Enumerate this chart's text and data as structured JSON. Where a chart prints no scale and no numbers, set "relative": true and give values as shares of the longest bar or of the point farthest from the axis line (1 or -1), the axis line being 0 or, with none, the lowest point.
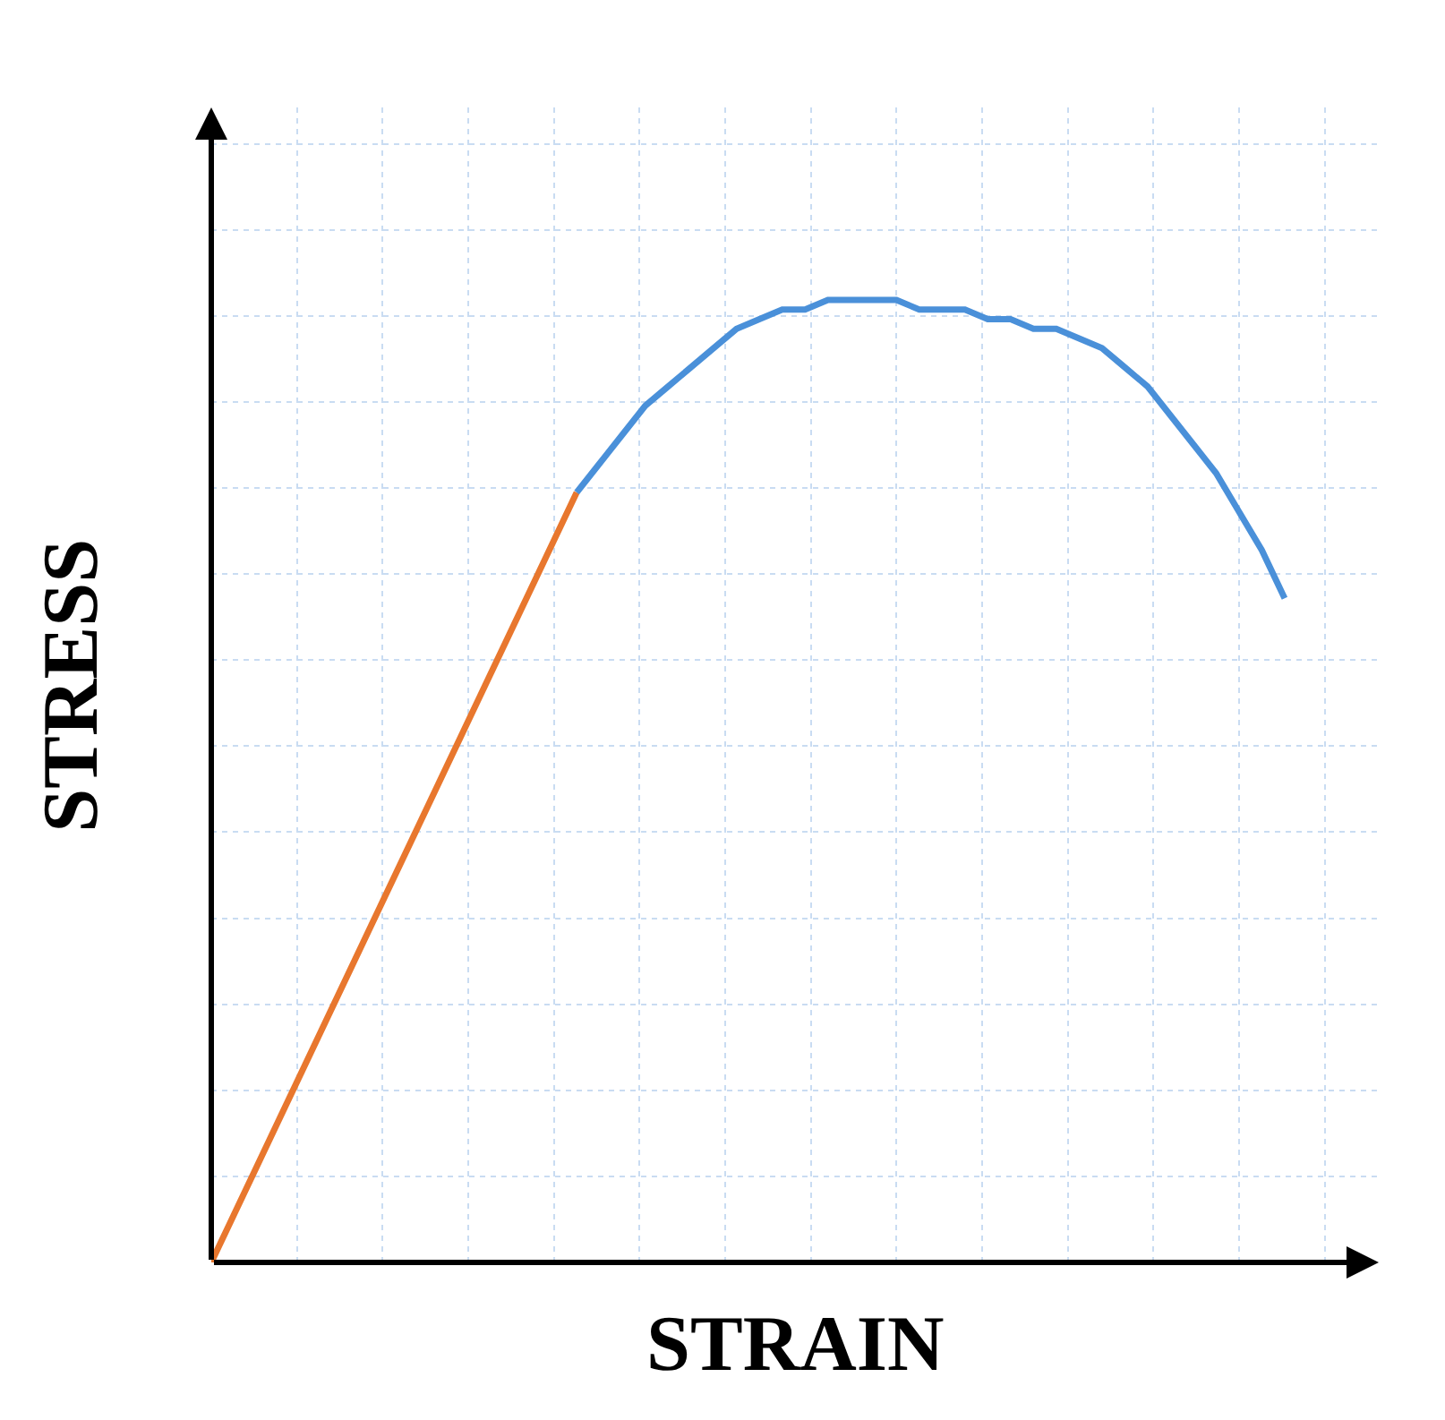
{
  "chart_data": {
    "type": "line",
    "xlabel": "STRAIN",
    "ylabel": "STRESS",
    "relative": true,
    "grid": true,
    "categories": [
      null,
      null,
      null,
      null,
      null,
      null,
      null,
      null,
      null,
      null,
      null,
      null,
      null,
      null,
      null,
      null,
      null,
      null,
      null,
      null,
      null,
      null,
      null,
      null,
      null,
      null,
      null,
      null,
      null,
      null,
      null,
      null,
      null,
      null,
      null,
      null,
      null,
      null,
      null,
      null,
      null,
      null,
      null,
      null,
      null,
      null,
      null,
      null
    ],
    "series": [
      {
        "color": "#e8772e",
        "values": [
          0,
          0.05,
          0.1,
          0.15,
          0.2,
          0.25,
          0.3,
          0.35,
          0.4,
          0.45,
          0.5,
          0.55,
          0.6,
          0.65,
          0.7,
          0.75,
          0.8,
          null,
          null,
          null,
          null,
          null,
          null,
          null,
          null,
          null,
          null,
          null,
          null,
          null,
          null,
          null,
          null,
          null,
          null,
          null,
          null,
          null,
          null,
          null,
          null,
          null,
          null,
          null,
          null,
          null,
          null,
          null
        ]
      },
      {
        "color": "#4a90d9",
        "values": [
          null,
          null,
          null,
          null,
          null,
          null,
          null,
          null,
          null,
          null,
          null,
          null,
          null,
          null,
          null,
          null,
          0.8,
          0.83,
          0.86,
          0.89,
          0.91,
          0.93,
          0.95,
          0.97,
          0.98,
          0.99,
          0.99,
          1.0,
          1.0,
          1.0,
          1.0,
          0.99,
          0.99,
          0.99,
          0.98,
          0.98,
          0.97,
          0.97,
          0.96,
          0.95,
          0.93,
          0.91,
          0.88,
          0.85,
          0.82,
          0.78,
          0.74,
          0.69
        ]
      }
    ]
  }
}
